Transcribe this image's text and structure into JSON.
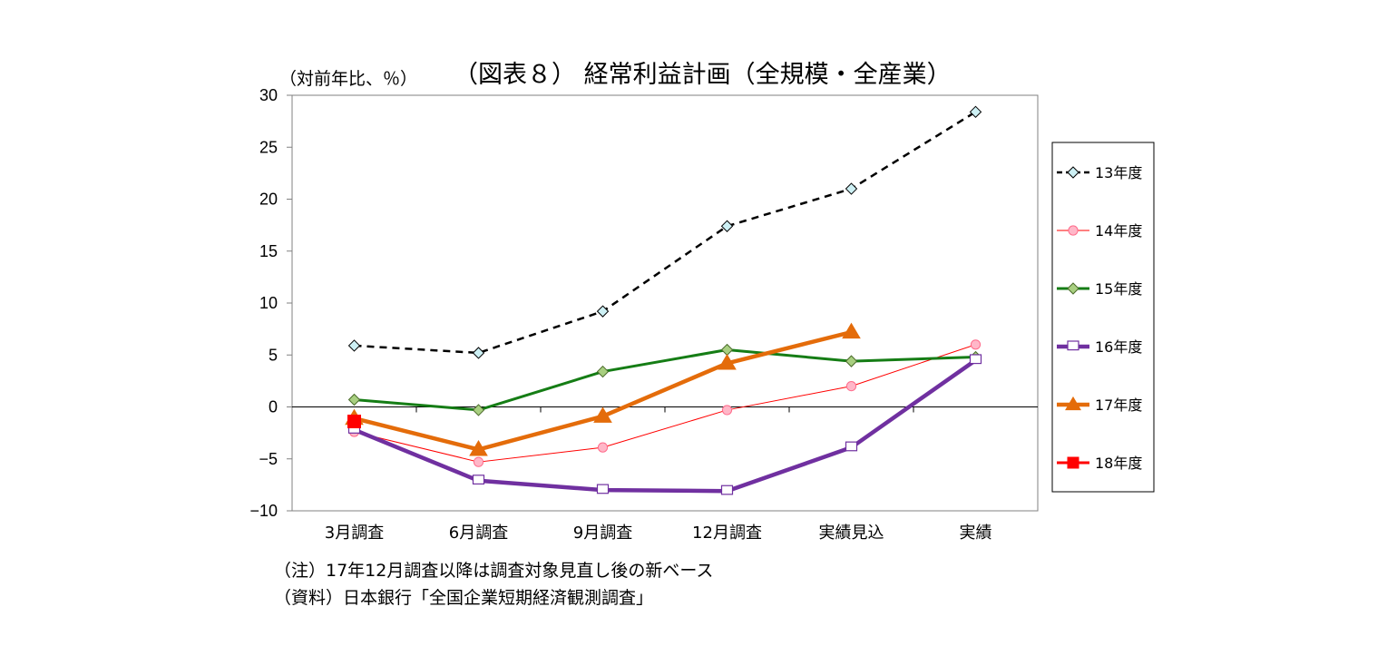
{
  "chart_data": {
    "type": "line",
    "title": "（図表８） 経常利益計画（全規模・全産業）",
    "unit_label": "（対前年比、％）",
    "categories": [
      "3月調査",
      "6月調査",
      "9月調査",
      "12月調査",
      "実績見込",
      "実績"
    ],
    "ylim": [
      -10,
      30
    ],
    "yticks": [
      30,
      25,
      20,
      15,
      10,
      5,
      0,
      -5,
      -10
    ],
    "legend_position": "right",
    "series": [
      {
        "name": "13年度",
        "values": [
          5.9,
          5.2,
          9.2,
          17.4,
          21.0,
          28.4
        ],
        "color": "#000000",
        "marker": "diamond",
        "marker_fill": "#cdf0f4",
        "line_style": "dashed",
        "line_width": 2.5
      },
      {
        "name": "14年度",
        "values": [
          -2.4,
          -5.3,
          -3.9,
          -0.3,
          2.0,
          6.0
        ],
        "color": "#ff0000",
        "marker_color": "#ff6a8a",
        "marker": "circle",
        "marker_fill": "#ffb7c8",
        "line_style": "solid",
        "line_width": 1
      },
      {
        "name": "15年度",
        "values": [
          0.7,
          -0.3,
          3.4,
          5.5,
          4.4,
          4.8
        ],
        "color": "#157d15",
        "marker": "diamond",
        "marker_fill": "#a8cf80",
        "marker_stroke": "#4a6a2a",
        "line_style": "solid",
        "line_width": 3
      },
      {
        "name": "16年度",
        "values": [
          -2.2,
          -7.1,
          -8.0,
          -8.1,
          -3.9,
          4.5
        ],
        "color": "#7030a0",
        "marker": "square-open",
        "marker_fill": "#ffffff",
        "line_style": "solid",
        "line_width": 4.5
      },
      {
        "name": "17年度",
        "values": [
          -1.1,
          -4.1,
          -0.9,
          4.2,
          7.2,
          null
        ],
        "color": "#e46c0a",
        "marker": "triangle",
        "marker_fill": "#e46c0a",
        "line_style": "solid",
        "line_width": 4.5
      },
      {
        "name": "18年度",
        "values": [
          -1.4,
          null,
          null,
          null,
          null,
          null
        ],
        "color": "#ff0000",
        "marker": "square",
        "marker_fill": "#ff0000",
        "line_style": "solid",
        "line_width": 3
      }
    ]
  },
  "notes": [
    "（注）17年12月調査以降は調査対象見直し後の新ベース",
    "（資料）日本銀行「全国企業短期経済観測調査」"
  ]
}
